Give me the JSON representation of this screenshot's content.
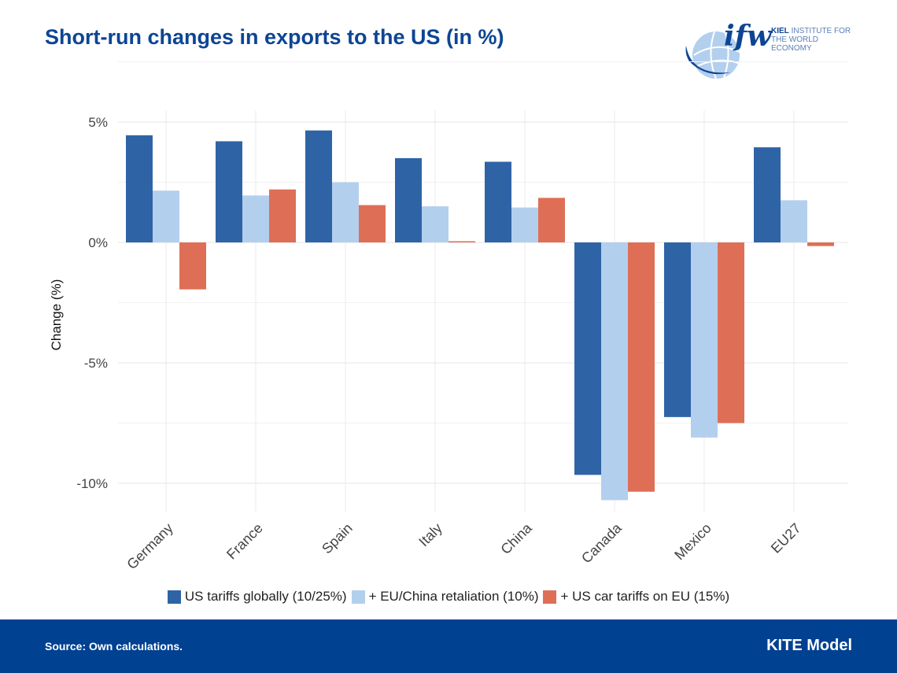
{
  "title": "Short-run changes in exports to the US (in %)",
  "logo": {
    "mark": "ifw",
    "name_bold": "KIEL",
    "name_rest": "INSTITUTE FOR",
    "name_line2": "THE WORLD ECONOMY"
  },
  "footer": {
    "source": "Source: Own calculations.",
    "model": "KITE Model"
  },
  "colors": {
    "series1": "#2e64a6",
    "series2": "#b3cfee",
    "series3": "#de6f56",
    "footer": "#004191",
    "title": "#0d4594"
  },
  "chart_data": {
    "type": "bar",
    "title": "Short-run changes in exports to the US (in %)",
    "xlabel": "",
    "ylabel": "Change (%)",
    "ylim": [
      -11.5,
      5.5
    ],
    "yticks": [
      5,
      0,
      -5,
      -10
    ],
    "ytick_labels": [
      "5%",
      "0%",
      "-5%",
      "-10%"
    ],
    "grid": true,
    "legend_position": "bottom",
    "categories": [
      "Germany",
      "France",
      "Spain",
      "Italy",
      "China",
      "Canada",
      "Mexico",
      "EU27"
    ],
    "series": [
      {
        "name": "US tariffs globally (10/25%)",
        "color": "#2e64a6",
        "values": [
          4.45,
          4.2,
          4.65,
          3.5,
          3.35,
          -9.65,
          -7.25,
          3.95
        ]
      },
      {
        "name": "+ EU/China retaliation (10%)",
        "color": "#b3cfee",
        "values": [
          2.15,
          1.95,
          2.5,
          1.5,
          1.45,
          -10.7,
          -8.1,
          1.75
        ]
      },
      {
        "name": "+ US car tariffs on EU (15%)",
        "color": "#de6f56",
        "values": [
          -1.95,
          2.2,
          1.55,
          0.05,
          1.85,
          -10.35,
          -7.5,
          -0.15
        ]
      }
    ]
  }
}
